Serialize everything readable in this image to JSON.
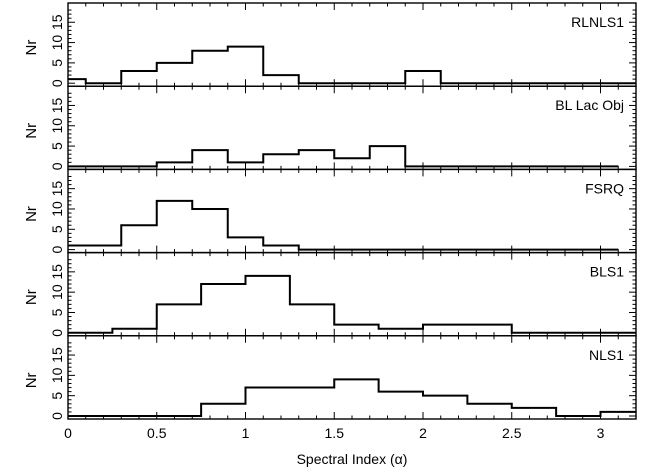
{
  "chart_data": {
    "type": "histogram",
    "xlabel": "Spectral Index (α)",
    "xlim": [
      0,
      3.2
    ],
    "x_ticks": [
      "0",
      "0.5",
      "1",
      "1.5",
      "2",
      "2.5",
      "3"
    ],
    "ylabel": "Nr",
    "ylim": [
      0,
      19
    ],
    "y_tick_values": [
      0,
      5,
      10,
      15
    ],
    "y_tick_labels": [
      "0",
      "5",
      "10",
      "15"
    ],
    "panels": [
      {
        "name": "RLNLS1",
        "bins": [
          {
            "x0": 0.0,
            "x1": 0.1,
            "count": 1
          },
          {
            "x0": 0.1,
            "x1": 0.3,
            "count": 0
          },
          {
            "x0": 0.3,
            "x1": 0.5,
            "count": 3
          },
          {
            "x0": 0.5,
            "x1": 0.7,
            "count": 5
          },
          {
            "x0": 0.7,
            "x1": 0.9,
            "count": 8
          },
          {
            "x0": 0.9,
            "x1": 1.1,
            "count": 9
          },
          {
            "x0": 1.1,
            "x1": 1.3,
            "count": 2
          },
          {
            "x0": 1.3,
            "x1": 1.9,
            "count": 0
          },
          {
            "x0": 1.9,
            "x1": 2.1,
            "count": 3
          },
          {
            "x0": 2.1,
            "x1": 3.2,
            "count": 0
          }
        ]
      },
      {
        "name": "BL Lac Obj",
        "bins": [
          {
            "x0": 0.0,
            "x1": 0.5,
            "count": 0
          },
          {
            "x0": 0.5,
            "x1": 0.7,
            "count": 1
          },
          {
            "x0": 0.7,
            "x1": 0.9,
            "count": 4
          },
          {
            "x0": 0.9,
            "x1": 1.1,
            "count": 1
          },
          {
            "x0": 1.1,
            "x1": 1.3,
            "count": 3
          },
          {
            "x0": 1.3,
            "x1": 1.5,
            "count": 4
          },
          {
            "x0": 1.5,
            "x1": 1.7,
            "count": 2
          },
          {
            "x0": 1.7,
            "x1": 1.9,
            "count": 5
          },
          {
            "x0": 1.9,
            "x1": 3.1,
            "count": 0
          }
        ]
      },
      {
        "name": "FSRQ",
        "bins": [
          {
            "x0": 0.0,
            "x1": 0.3,
            "count": 1
          },
          {
            "x0": 0.3,
            "x1": 0.5,
            "count": 6
          },
          {
            "x0": 0.5,
            "x1": 0.7,
            "count": 12
          },
          {
            "x0": 0.7,
            "x1": 0.9,
            "count": 10
          },
          {
            "x0": 0.9,
            "x1": 1.1,
            "count": 3
          },
          {
            "x0": 1.1,
            "x1": 1.3,
            "count": 1
          },
          {
            "x0": 1.3,
            "x1": 3.1,
            "count": 0
          }
        ]
      },
      {
        "name": "BLS1",
        "bins": [
          {
            "x0": 0.0,
            "x1": 0.25,
            "count": 0
          },
          {
            "x0": 0.25,
            "x1": 0.5,
            "count": 1
          },
          {
            "x0": 0.5,
            "x1": 0.75,
            "count": 7
          },
          {
            "x0": 0.75,
            "x1": 1.0,
            "count": 12
          },
          {
            "x0": 1.0,
            "x1": 1.25,
            "count": 14
          },
          {
            "x0": 1.25,
            "x1": 1.5,
            "count": 7
          },
          {
            "x0": 1.5,
            "x1": 1.75,
            "count": 2
          },
          {
            "x0": 1.75,
            "x1": 2.0,
            "count": 1
          },
          {
            "x0": 2.0,
            "x1": 2.5,
            "count": 2
          },
          {
            "x0": 2.5,
            "x1": 3.2,
            "count": 0
          }
        ]
      },
      {
        "name": "NLS1",
        "bins": [
          {
            "x0": 0.0,
            "x1": 0.75,
            "count": 0
          },
          {
            "x0": 0.75,
            "x1": 1.0,
            "count": 3
          },
          {
            "x0": 1.0,
            "x1": 1.25,
            "count": 7
          },
          {
            "x0": 1.25,
            "x1": 1.5,
            "count": 7
          },
          {
            "x0": 1.5,
            "x1": 1.75,
            "count": 9
          },
          {
            "x0": 1.75,
            "x1": 2.0,
            "count": 6
          },
          {
            "x0": 2.0,
            "x1": 2.25,
            "count": 5
          },
          {
            "x0": 2.25,
            "x1": 2.5,
            "count": 3
          },
          {
            "x0": 2.5,
            "x1": 2.75,
            "count": 2
          },
          {
            "x0": 2.75,
            "x1": 3.0,
            "count": 0
          },
          {
            "x0": 3.0,
            "x1": 3.2,
            "count": 1
          }
        ]
      }
    ]
  }
}
